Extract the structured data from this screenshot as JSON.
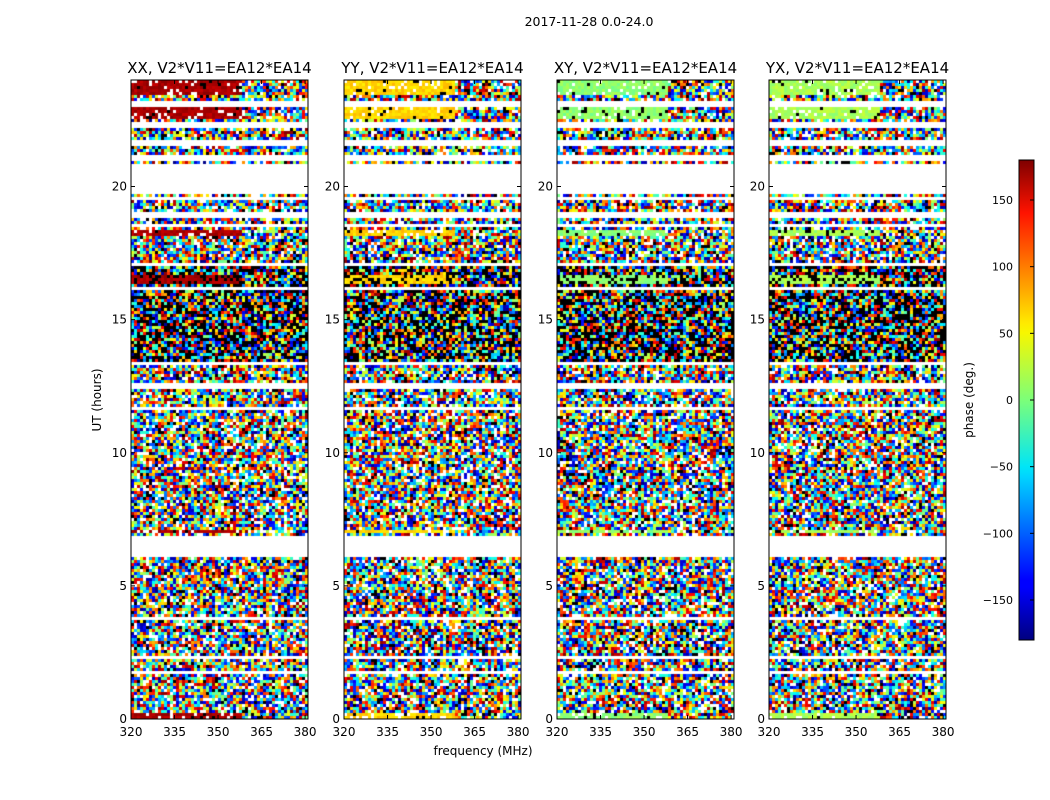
{
  "chart_data": {
    "type": "heatmap",
    "suptitle": "2017-11-28 0.0-24.0",
    "xlabel": "frequency (MHz)",
    "ylabel": "UT (hours)",
    "xlim": [
      320,
      381
    ],
    "ylim": [
      0,
      24
    ],
    "x_ticks": [
      320,
      335,
      350,
      365,
      380
    ],
    "y_ticks": [
      0,
      5,
      10,
      15,
      20
    ],
    "colorbar": {
      "label": "phase (deg.)",
      "range": [
        -180,
        180
      ],
      "ticks": [
        -150,
        -100,
        -50,
        0,
        50,
        100,
        150
      ],
      "ticklabels": [
        "−150",
        "−100",
        "−50",
        "0",
        "50",
        "100",
        "150"
      ],
      "colormap": "jet"
    },
    "panels": [
      {
        "title": "XX, V2*V11=EA12*EA14",
        "coherent_phase_deg": 165
      },
      {
        "title": "YY, V2*V11=EA12*EA14",
        "coherent_phase_deg": 60
      },
      {
        "title": "XY, V2*V11=EA12*EA14",
        "coherent_phase_deg": 5
      },
      {
        "title": "YX, V2*V11=EA12*EA14",
        "coherent_phase_deg": 15
      }
    ],
    "blank_time_ranges_hours": [
      [
        23.0,
        23.25
      ],
      [
        22.2,
        22.4
      ],
      [
        21.5,
        21.7
      ],
      [
        21.0,
        21.15
      ],
      [
        19.75,
        20.9
      ],
      [
        19.45,
        19.55
      ],
      [
        18.8,
        19.05
      ],
      [
        18.45,
        18.55
      ],
      [
        17.0,
        17.1
      ],
      [
        16.1,
        16.25
      ],
      [
        13.3,
        13.45
      ],
      [
        12.45,
        12.6
      ],
      [
        11.55,
        11.7
      ],
      [
        7.05,
        7.1
      ],
      [
        6.1,
        6.9
      ],
      [
        4.8,
        4.85
      ],
      [
        3.75,
        3.8
      ],
      [
        2.3,
        2.35
      ],
      [
        1.7,
        1.8
      ]
    ],
    "coherent_time_ranges_hours": [
      [
        23.45,
        23.95
      ],
      [
        22.55,
        22.95
      ],
      [
        18.15,
        18.35
      ],
      [
        16.3,
        16.7
      ],
      [
        6.95,
        7.05
      ],
      [
        0.05,
        0.25
      ]
    ]
  }
}
